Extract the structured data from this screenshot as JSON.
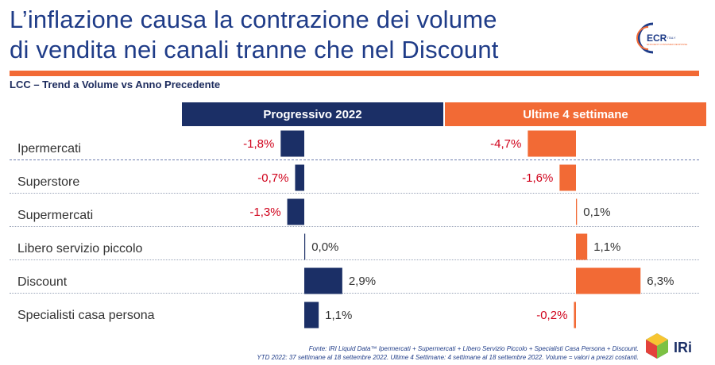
{
  "header": {
    "title_line1": "L’inflazione causa la contrazione dei volume",
    "title_line2": "di vendita nei canali tranne che nel Discount",
    "subtitle": "LCC – Trend a Volume vs Anno Precedente"
  },
  "logos": {
    "ecr_text": "ECR",
    "ecr_small1": "ITALY",
    "ecr_small2": "EFFICIENT CONSUMER RESPONSE",
    "iri_text": "IRi"
  },
  "colors": {
    "blue": "#1b2f66",
    "orange": "#f26a35",
    "negative": "#d0021b",
    "positive": "#333333"
  },
  "chart_data": {
    "type": "bar",
    "orientation": "horizontal",
    "categories": [
      "Ipermercati",
      "Superstore",
      "Supermercati",
      "Libero servizio piccolo",
      "Discount",
      "Specialisti casa persona"
    ],
    "series": [
      {
        "name": "Progressivo 2022",
        "values": [
          -1.8,
          -0.7,
          -1.3,
          0.0,
          2.9,
          1.1
        ],
        "labels": [
          "-1,8%",
          "-0,7%",
          "-1,3%",
          "0,0%",
          "2,9%",
          "1,1%"
        ]
      },
      {
        "name": "Ultime 4 settimane",
        "values": [
          -4.7,
          -1.6,
          0.1,
          1.1,
          6.3,
          -0.2
        ],
        "labels": [
          "-4,7%",
          "-1,6%",
          "0,1%",
          "1,1%",
          "6,3%",
          "-0,2%"
        ]
      }
    ],
    "legend": "top"
  },
  "footer": {
    "line1": "Fonte: IRI Liquid Data™ Ipermercati + Supermercati + Libero Servizio Piccolo + Specialisti Casa Persona + Discount.",
    "line2": "YTD 2022: 37 settimane al 18 settembre 2022. Ultime 4 Settimane: 4 settimane al 18 settembre 2022. Volume = valori a prezzi costanti."
  }
}
